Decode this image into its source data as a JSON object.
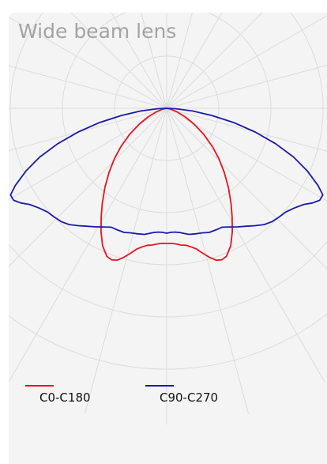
{
  "chart_data": {
    "type": "polar-line",
    "title": "Wide beam lens",
    "orientation": "nadir-down",
    "grid": true,
    "legend_position": "bottom-left",
    "series": [
      {
        "name": "C0-C180",
        "color": "#e8141e",
        "shape": [
          {
            "angle": 0,
            "value": 171
          },
          {
            "angle": 2,
            "value": 171
          },
          {
            "angle": 4,
            "value": 172
          },
          {
            "angle": 6,
            "value": 174
          },
          {
            "angle": 8,
            "value": 175
          },
          {
            "angle": 10,
            "value": 178
          },
          {
            "angle": 12,
            "value": 182
          },
          {
            "angle": 14,
            "value": 189
          },
          {
            "angle": 16,
            "value": 196
          },
          {
            "angle": 18,
            "value": 202
          },
          {
            "angle": 20,
            "value": 204
          },
          {
            "angle": 22,
            "value": 202
          },
          {
            "angle": 25,
            "value": 192
          },
          {
            "angle": 28,
            "value": 177
          },
          {
            "angle": 31,
            "value": 161
          },
          {
            "angle": 34,
            "value": 146
          },
          {
            "angle": 38,
            "value": 127
          },
          {
            "angle": 42,
            "value": 109
          },
          {
            "angle": 46,
            "value": 92
          },
          {
            "angle": 50,
            "value": 76
          },
          {
            "angle": 55,
            "value": 57
          },
          {
            "angle": 60,
            "value": 40
          },
          {
            "angle": 65,
            "value": 26
          },
          {
            "angle": 70,
            "value": 15
          },
          {
            "angle": 75,
            "value": 7
          },
          {
            "angle": 80,
            "value": 2
          },
          {
            "angle": 85,
            "value": 0
          },
          {
            "angle": 90,
            "value": 0
          }
        ]
      },
      {
        "name": "C90-C270",
        "color": "#1a1aaa",
        "shape": [
          {
            "angle": 0,
            "value": 158
          },
          {
            "angle": 2,
            "value": 157
          },
          {
            "angle": 4,
            "value": 157
          },
          {
            "angle": 6,
            "value": 158
          },
          {
            "angle": 8,
            "value": 160
          },
          {
            "angle": 10,
            "value": 162
          },
          {
            "angle": 13,
            "value": 163
          },
          {
            "angle": 16,
            "value": 164
          },
          {
            "angle": 19,
            "value": 166
          },
          {
            "angle": 22,
            "value": 166
          },
          {
            "angle": 25,
            "value": 166
          },
          {
            "angle": 28,
            "value": 170
          },
          {
            "angle": 31,
            "value": 175
          },
          {
            "angle": 34,
            "value": 180
          },
          {
            "angle": 37,
            "value": 186
          },
          {
            "angle": 40,
            "value": 192
          },
          {
            "angle": 43,
            "value": 196
          },
          {
            "angle": 46,
            "value": 198
          },
          {
            "angle": 49,
            "value": 200
          },
          {
            "angle": 52,
            "value": 205
          },
          {
            "angle": 55,
            "value": 212
          },
          {
            "angle": 57,
            "value": 220
          },
          {
            "angle": 59,
            "value": 226
          },
          {
            "angle": 61,
            "value": 226
          },
          {
            "angle": 63,
            "value": 215
          },
          {
            "angle": 66,
            "value": 195
          },
          {
            "angle": 69,
            "value": 172
          },
          {
            "angle": 72,
            "value": 145
          },
          {
            "angle": 75,
            "value": 116
          },
          {
            "angle": 78,
            "value": 87
          },
          {
            "angle": 81,
            "value": 58
          },
          {
            "angle": 84,
            "value": 33
          },
          {
            "angle": 87,
            "value": 12
          },
          {
            "angle": 90,
            "value": 0
          }
        ]
      }
    ]
  }
}
